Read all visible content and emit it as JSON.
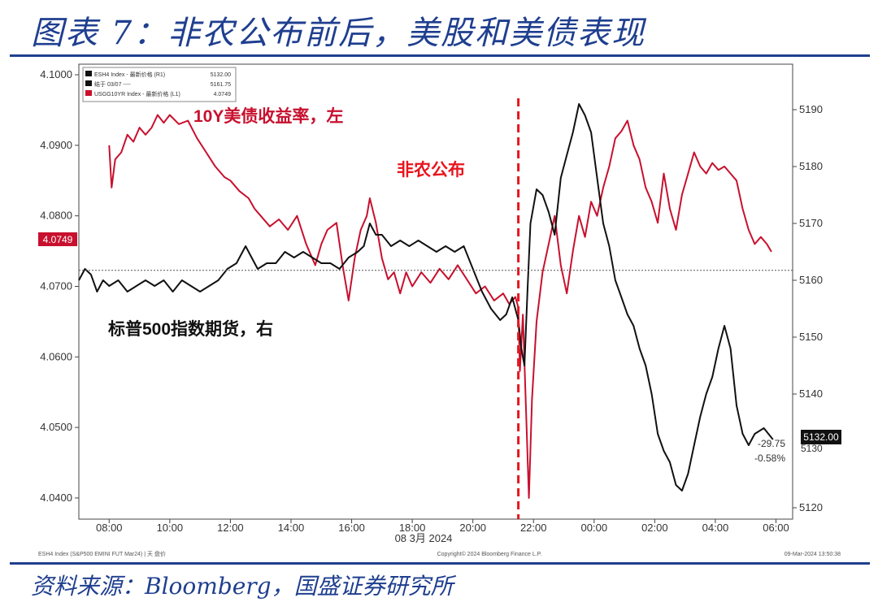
{
  "title": "图表 7：非农公布前后，美股和美债表现",
  "source": "资料来源：Bloomberg，国盛证券研究所",
  "chart_data": {
    "type": "line",
    "legend": [
      {
        "name": "ESH4 Index - 最新价格 (R1)",
        "value": "5132.00",
        "color": "#111111"
      },
      {
        "name": "结于 03/07 ----",
        "value": "5161.75",
        "color": "#111111"
      },
      {
        "name": "USGG10YR Index - 最新价格 (L1)",
        "value": "4.0749",
        "color": "#c8102e"
      }
    ],
    "annotations": {
      "yield_label": "10Y美债收益率，左",
      "futures_label": "标普500指数期货，右",
      "nfp_label": "非农公布",
      "left_badge": "4.0749",
      "right_badge": "5132.00",
      "change_abs": "-29.75",
      "change_pct": "-0.58%",
      "right_partial_tick": "5130"
    },
    "left_axis": {
      "ticks": [
        "4.1000",
        "4.0900",
        "4.0800",
        "4.0700",
        "4.0600",
        "4.0500",
        "4.0400"
      ],
      "range": [
        4.037,
        4.1015
      ]
    },
    "right_axis": {
      "ticks": [
        "5190",
        "5180",
        "5170",
        "5160",
        "5150",
        "5140",
        "5120"
      ],
      "range": [
        5118,
        5198
      ]
    },
    "x_axis": {
      "ticks": [
        "08:00",
        "10:00",
        "12:00",
        "14:00",
        "16:00",
        "18:00",
        "20:00",
        "22:00",
        "00:00",
        "02:00",
        "04:00",
        "06:00"
      ],
      "date_label": "08 3月 2024",
      "range_hours": [
        7.0,
        30.55
      ]
    },
    "nfp_time_hours": 21.5,
    "prior_close": 5161.75,
    "footer_left": "ESH4 Index (S&P500 EMINI FUT Mar24) | 天 盘价",
    "footer_mid": "Copyright© 2024 Bloomberg Finance L.P.",
    "footer_right": "09-Mar-2024 13:50:38",
    "series": [
      {
        "name": "USGG10YR Index",
        "axis": "left",
        "color": "#c8102e",
        "points": [
          [
            8.0,
            4.09
          ],
          [
            8.08,
            4.084
          ],
          [
            8.2,
            4.088
          ],
          [
            8.4,
            4.089
          ],
          [
            8.6,
            4.0915
          ],
          [
            8.8,
            4.0905
          ],
          [
            9.0,
            4.0925
          ],
          [
            9.2,
            4.0915
          ],
          [
            9.4,
            4.0925
          ],
          [
            9.6,
            4.0943
          ],
          [
            9.8,
            4.0932
          ],
          [
            10.0,
            4.0943
          ],
          [
            10.3,
            4.093
          ],
          [
            10.6,
            4.0935
          ],
          [
            10.9,
            4.091
          ],
          [
            11.2,
            4.089
          ],
          [
            11.5,
            4.087
          ],
          [
            11.8,
            4.0855
          ],
          [
            12.0,
            4.085
          ],
          [
            12.3,
            4.0835
          ],
          [
            12.6,
            4.0825
          ],
          [
            12.8,
            4.081
          ],
          [
            13.0,
            4.08
          ],
          [
            13.3,
            4.0785
          ],
          [
            13.6,
            4.0795
          ],
          [
            13.9,
            4.078
          ],
          [
            14.2,
            4.08
          ],
          [
            14.5,
            4.076
          ],
          [
            14.8,
            4.073
          ],
          [
            15.0,
            4.076
          ],
          [
            15.2,
            4.078
          ],
          [
            15.5,
            4.079
          ],
          [
            15.7,
            4.073
          ],
          [
            15.9,
            4.068
          ],
          [
            16.1,
            4.074
          ],
          [
            16.3,
            4.078
          ],
          [
            16.5,
            4.08
          ],
          [
            16.6,
            4.0825
          ],
          [
            16.8,
            4.079
          ],
          [
            17.0,
            4.074
          ],
          [
            17.2,
            4.071
          ],
          [
            17.4,
            4.072
          ],
          [
            17.6,
            4.069
          ],
          [
            17.8,
            4.072
          ],
          [
            18.0,
            4.07
          ],
          [
            18.3,
            4.072
          ],
          [
            18.6,
            4.0705
          ],
          [
            18.9,
            4.0725
          ],
          [
            19.2,
            4.071
          ],
          [
            19.5,
            4.073
          ],
          [
            19.8,
            4.071
          ],
          [
            20.1,
            4.069
          ],
          [
            20.4,
            4.07
          ],
          [
            20.7,
            4.068
          ],
          [
            21.0,
            4.069
          ],
          [
            21.2,
            4.0675
          ],
          [
            21.4,
            4.0685
          ],
          [
            21.5,
            4.067
          ],
          [
            21.55,
            4.058
          ],
          [
            21.65,
            4.066
          ],
          [
            21.75,
            4.053
          ],
          [
            21.85,
            4.04
          ],
          [
            21.95,
            4.054
          ],
          [
            22.1,
            4.065
          ],
          [
            22.3,
            4.072
          ],
          [
            22.5,
            4.076
          ],
          [
            22.7,
            4.08
          ],
          [
            22.9,
            4.073
          ],
          [
            23.1,
            4.069
          ],
          [
            23.3,
            4.075
          ],
          [
            23.5,
            4.08
          ],
          [
            23.7,
            4.077
          ],
          [
            23.9,
            4.082
          ],
          [
            24.1,
            4.08
          ],
          [
            24.3,
            4.084
          ],
          [
            24.5,
            4.087
          ],
          [
            24.7,
            4.091
          ],
          [
            24.9,
            4.092
          ],
          [
            25.1,
            4.0935
          ],
          [
            25.3,
            4.09
          ],
          [
            25.5,
            4.088
          ],
          [
            25.7,
            4.084
          ],
          [
            25.9,
            4.082
          ],
          [
            26.1,
            4.079
          ],
          [
            26.3,
            4.086
          ],
          [
            26.5,
            4.081
          ],
          [
            26.7,
            4.078
          ],
          [
            26.9,
            4.083
          ],
          [
            27.1,
            4.086
          ],
          [
            27.3,
            4.089
          ],
          [
            27.5,
            4.087
          ],
          [
            27.7,
            4.086
          ],
          [
            27.9,
            4.0875
          ],
          [
            28.1,
            4.0865
          ],
          [
            28.3,
            4.087
          ],
          [
            28.5,
            4.086
          ],
          [
            28.7,
            4.085
          ],
          [
            28.9,
            4.081
          ],
          [
            29.1,
            4.078
          ],
          [
            29.3,
            4.076
          ],
          [
            29.5,
            4.077
          ],
          [
            29.7,
            4.076
          ],
          [
            29.85,
            4.0749
          ]
        ]
      },
      {
        "name": "ESH4 Index",
        "axis": "right",
        "color": "#111111",
        "points": [
          [
            7.0,
            5160
          ],
          [
            7.2,
            5162
          ],
          [
            7.4,
            5161
          ],
          [
            7.6,
            5158
          ],
          [
            7.8,
            5160
          ],
          [
            8.0,
            5159
          ],
          [
            8.3,
            5160
          ],
          [
            8.6,
            5158
          ],
          [
            8.9,
            5159
          ],
          [
            9.2,
            5160
          ],
          [
            9.5,
            5159
          ],
          [
            9.8,
            5160
          ],
          [
            10.1,
            5158
          ],
          [
            10.4,
            5160
          ],
          [
            10.7,
            5159
          ],
          [
            11.0,
            5158
          ],
          [
            11.3,
            5159
          ],
          [
            11.6,
            5160
          ],
          [
            11.9,
            5162
          ],
          [
            12.2,
            5163
          ],
          [
            12.5,
            5166
          ],
          [
            12.7,
            5164
          ],
          [
            12.9,
            5162
          ],
          [
            13.2,
            5163
          ],
          [
            13.5,
            5163
          ],
          [
            13.8,
            5165
          ],
          [
            14.1,
            5164
          ],
          [
            14.4,
            5165
          ],
          [
            14.7,
            5164
          ],
          [
            15.0,
            5163
          ],
          [
            15.3,
            5163
          ],
          [
            15.6,
            5162
          ],
          [
            15.9,
            5164
          ],
          [
            16.2,
            5165
          ],
          [
            16.4,
            5166
          ],
          [
            16.6,
            5170
          ],
          [
            16.8,
            5168
          ],
          [
            17.0,
            5168
          ],
          [
            17.3,
            5166
          ],
          [
            17.6,
            5167
          ],
          [
            17.9,
            5166
          ],
          [
            18.2,
            5167
          ],
          [
            18.5,
            5166
          ],
          [
            18.8,
            5165
          ],
          [
            19.1,
            5166
          ],
          [
            19.4,
            5165
          ],
          [
            19.7,
            5166
          ],
          [
            20.0,
            5162
          ],
          [
            20.3,
            5158
          ],
          [
            20.6,
            5155
          ],
          [
            20.9,
            5153
          ],
          [
            21.1,
            5154
          ],
          [
            21.3,
            5157
          ],
          [
            21.5,
            5153
          ],
          [
            21.6,
            5148
          ],
          [
            21.7,
            5145
          ],
          [
            21.8,
            5158
          ],
          [
            21.9,
            5170
          ],
          [
            22.1,
            5176
          ],
          [
            22.3,
            5175
          ],
          [
            22.5,
            5172
          ],
          [
            22.7,
            5168
          ],
          [
            22.9,
            5178
          ],
          [
            23.1,
            5182
          ],
          [
            23.3,
            5186
          ],
          [
            23.5,
            5191
          ],
          [
            23.7,
            5189
          ],
          [
            23.9,
            5186
          ],
          [
            24.1,
            5178
          ],
          [
            24.3,
            5170
          ],
          [
            24.5,
            5166
          ],
          [
            24.7,
            5160
          ],
          [
            24.9,
            5157
          ],
          [
            25.1,
            5154
          ],
          [
            25.3,
            5152
          ],
          [
            25.5,
            5148
          ],
          [
            25.7,
            5145
          ],
          [
            25.9,
            5140
          ],
          [
            26.1,
            5133
          ],
          [
            26.3,
            5130
          ],
          [
            26.5,
            5128
          ],
          [
            26.7,
            5124
          ],
          [
            26.9,
            5123
          ],
          [
            27.1,
            5126
          ],
          [
            27.3,
            5131
          ],
          [
            27.5,
            5136
          ],
          [
            27.7,
            5140
          ],
          [
            27.9,
            5143
          ],
          [
            28.1,
            5148
          ],
          [
            28.3,
            5152
          ],
          [
            28.5,
            5148
          ],
          [
            28.7,
            5138
          ],
          [
            28.9,
            5133
          ],
          [
            29.1,
            5131
          ],
          [
            29.3,
            5133
          ],
          [
            29.6,
            5134
          ],
          [
            29.9,
            5132
          ]
        ]
      }
    ]
  }
}
